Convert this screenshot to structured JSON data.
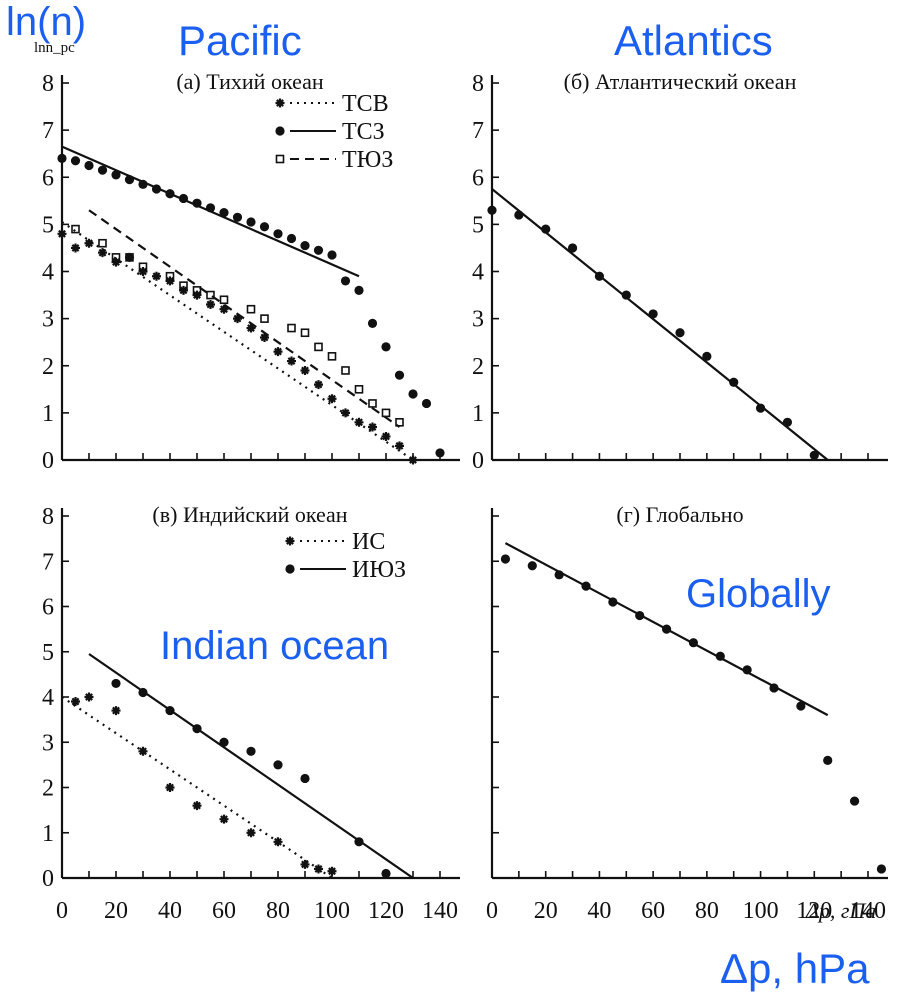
{
  "overlay": {
    "ylabel": "ln(n)",
    "pacific": "Pacific",
    "atlantic": "Atlantics",
    "indian": "Indian ocean",
    "global": "Globally",
    "xunit": "Δp, hPa"
  },
  "axes_text": {
    "ylabel_orig": "lnn_pc",
    "xlabel_orig": "Δp, гПа"
  },
  "colors": {
    "overlay": "#1a5ff0",
    "ink": "#111111"
  },
  "chart_data": [
    {
      "type": "scatter",
      "panel": "a",
      "title": "(а) Тихий океан",
      "xlim": [
        0,
        140
      ],
      "ylim": [
        0,
        8
      ],
      "yticks": [
        0,
        1,
        2,
        3,
        4,
        5,
        6,
        7,
        8
      ],
      "legend": "top-right",
      "series": [
        {
          "name": "ТСВ",
          "marker": "star",
          "line": "dotted",
          "x": [
            0,
            5,
            10,
            15,
            20,
            25,
            30,
            35,
            40,
            45,
            50,
            55,
            60,
            65,
            70,
            75,
            80,
            85,
            90,
            95,
            100,
            105,
            110,
            115,
            120,
            125,
            130
          ],
          "y": [
            4.8,
            4.5,
            4.6,
            4.4,
            4.2,
            4.3,
            4.0,
            3.9,
            3.8,
            3.6,
            3.5,
            3.3,
            3.2,
            3.0,
            2.8,
            2.6,
            2.3,
            2.1,
            1.9,
            1.6,
            1.3,
            1.0,
            0.8,
            0.7,
            0.5,
            0.3,
            0.0
          ],
          "fit": [
            [
              0,
              5.05
            ],
            [
              130,
              0.0
            ]
          ]
        },
        {
          "name": "ТСЗ",
          "marker": "dot",
          "line": "solid",
          "x": [
            0,
            5,
            10,
            15,
            20,
            25,
            30,
            35,
            40,
            45,
            50,
            55,
            60,
            65,
            70,
            75,
            80,
            85,
            90,
            95,
            100,
            105,
            110,
            115,
            120,
            125,
            130,
            135
          ],
          "y": [
            6.4,
            6.35,
            6.25,
            6.15,
            6.05,
            5.95,
            5.85,
            5.75,
            5.65,
            5.55,
            5.45,
            5.35,
            5.25,
            5.15,
            5.05,
            4.95,
            4.8,
            4.7,
            4.55,
            4.45,
            4.35,
            3.8,
            3.6,
            2.9,
            2.4,
            1.8,
            1.4,
            1.2
          ],
          "fit": [
            [
              0,
              6.65
            ],
            [
              110,
              3.9
            ]
          ]
        },
        {
          "name": "ТЮЗ",
          "marker": "square",
          "line": "dashed",
          "x": [
            5,
            15,
            20,
            25,
            30,
            40,
            45,
            50,
            55,
            60,
            70,
            75,
            85,
            90,
            95,
            100,
            105,
            110,
            115,
            120,
            125
          ],
          "y": [
            4.9,
            4.6,
            4.3,
            4.3,
            4.1,
            3.9,
            3.7,
            3.6,
            3.5,
            3.4,
            3.2,
            3.0,
            2.8,
            2.7,
            2.4,
            2.2,
            1.9,
            1.5,
            1.2,
            1.0,
            0.8
          ],
          "fit": [
            [
              10,
              5.3
            ],
            [
              125,
              0.7
            ]
          ]
        },
        {
          "name": "",
          "marker": "dot",
          "line": "none",
          "x": [
            140
          ],
          "y": [
            0.15
          ]
        }
      ]
    },
    {
      "type": "scatter",
      "panel": "b",
      "title": "(б) Атлантический океан",
      "xlim": [
        0,
        140
      ],
      "ylim": [
        0,
        8
      ],
      "yticks": [
        0,
        1,
        2,
        3,
        4,
        5,
        6,
        7,
        8
      ],
      "series": [
        {
          "name": "",
          "marker": "dot",
          "line": "solid",
          "x": [
            0,
            10,
            20,
            30,
            40,
            50,
            60,
            70,
            80,
            90,
            100,
            110,
            120
          ],
          "y": [
            5.3,
            5.2,
            4.9,
            4.5,
            3.9,
            3.5,
            3.1,
            2.7,
            2.2,
            1.65,
            1.1,
            0.8,
            0.1
          ],
          "fit": [
            [
              0,
              5.75
            ],
            [
              125,
              0.0
            ]
          ]
        }
      ]
    },
    {
      "type": "scatter",
      "panel": "c",
      "title": "(в) Индийский океан",
      "xlim": [
        0,
        140
      ],
      "xticks": [
        0,
        20,
        40,
        60,
        80,
        100,
        120,
        140
      ],
      "ylim": [
        0,
        8
      ],
      "yticks": [
        0,
        1,
        2,
        3,
        4,
        5,
        6,
        7,
        8
      ],
      "legend": "top-right",
      "series": [
        {
          "name": "ИС",
          "marker": "star",
          "line": "dotted",
          "x": [
            5,
            10,
            20,
            30,
            40,
            50,
            60,
            70,
            80,
            90,
            95,
            100
          ],
          "y": [
            3.9,
            4.0,
            3.7,
            2.8,
            2.0,
            1.6,
            1.3,
            1.0,
            0.8,
            0.3,
            0.2,
            0.15
          ],
          "fit": [
            [
              0,
              4.0
            ],
            [
              100,
              0.0
            ]
          ]
        },
        {
          "name": "ИЮЗ",
          "marker": "dot",
          "line": "solid",
          "x": [
            20,
            30,
            40,
            50,
            60,
            70,
            80,
            90,
            110,
            120
          ],
          "y": [
            4.3,
            4.1,
            3.7,
            3.3,
            3.0,
            2.8,
            2.5,
            2.2,
            0.8,
            0.1
          ],
          "fit": [
            [
              10,
              4.95
            ],
            [
              130,
              0.0
            ]
          ]
        }
      ]
    },
    {
      "type": "scatter",
      "panel": "d",
      "title": "(г) Глобально",
      "xlim": [
        0,
        140
      ],
      "xticks": [
        0,
        20,
        40,
        60,
        80,
        100,
        120,
        140
      ],
      "ylim": [
        0,
        8
      ],
      "series": [
        {
          "name": "",
          "marker": "dot",
          "line": "solid",
          "x": [
            5,
            15,
            25,
            35,
            45,
            55,
            65,
            75,
            85,
            95,
            105,
            115,
            125,
            135,
            145
          ],
          "y": [
            7.05,
            6.9,
            6.7,
            6.45,
            6.1,
            5.8,
            5.5,
            5.2,
            4.9,
            4.6,
            4.2,
            3.8,
            2.6,
            1.7,
            0.2
          ],
          "fit": [
            [
              5,
              7.4
            ],
            [
              125,
              3.6
            ]
          ]
        }
      ]
    }
  ]
}
